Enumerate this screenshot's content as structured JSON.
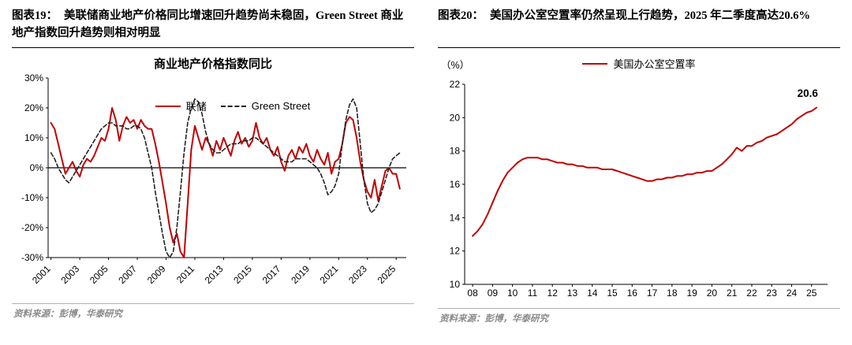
{
  "panels": [
    {
      "label": "图表19：",
      "title": "美联储商业地产价格同比增速回升趋势尚未稳固，Green Street 商业地产指数回升趋势则相对明显",
      "source": "资料来源：彭博，华泰研究"
    },
    {
      "label": "图表20：",
      "title": "美国办公室空置率仍然呈现上行趋势，2025 年二季度高达20.6%",
      "source": "资料来源：彭博，华泰研究"
    }
  ],
  "colors": {
    "accent_red": "#C00000",
    "dash_black": "#222222",
    "axis": "#000000"
  },
  "chart_data": [
    {
      "type": "line",
      "title": "商业地产价格指数同比",
      "xlabel": "",
      "ylabel": "",
      "x_start": 2001.0,
      "x_step": 0.25,
      "xlim": [
        2000.8,
        2025.7
      ],
      "ylim": [
        -30,
        30
      ],
      "yticks": [
        30,
        20,
        10,
        0,
        -10,
        -20,
        -30
      ],
      "y_suffix": "%",
      "xticks": {
        "values": [
          2001,
          2003,
          2005,
          2007,
          2009,
          2011,
          2013,
          2015,
          2017,
          2019,
          2021,
          2023,
          2025
        ],
        "labels": [
          "2001",
          "2003",
          "2005",
          "2007",
          "2009",
          "2011",
          "2013",
          "2015",
          "2017",
          "2019",
          "2021",
          "2023",
          "2025"
        ]
      },
      "rotate_x_labels": true,
      "zero_line": true,
      "grid": false,
      "legend_position": "inside-top",
      "series": [
        {
          "name": "联储",
          "color": "#C00000",
          "dash": "",
          "width": 2,
          "values": [
            15,
            13,
            8,
            3,
            -2,
            0,
            2,
            -1,
            -3,
            1,
            3,
            2,
            4,
            7,
            10,
            9,
            13,
            20,
            16,
            9,
            14,
            17,
            15,
            16,
            13,
            16,
            14,
            13,
            13,
            8,
            2,
            -5,
            -12,
            -20,
            -25,
            -22,
            -28,
            -30,
            -12,
            6,
            14,
            10,
            6,
            10,
            8,
            4,
            9,
            6,
            10,
            7,
            4,
            9,
            12,
            8,
            10,
            7,
            9,
            15,
            10,
            8,
            10,
            6,
            4,
            7,
            2,
            -1,
            4,
            6,
            3,
            7,
            5,
            8,
            4,
            2,
            6,
            3,
            1,
            5,
            -2,
            2,
            3,
            8,
            15,
            17,
            16,
            10,
            2,
            -4,
            -8,
            -10,
            -4,
            -11,
            -6,
            -1,
            0,
            -2,
            -2,
            -7
          ]
        },
        {
          "name": "Green Street",
          "color": "#222222",
          "dash": "5 3",
          "width": 1.6,
          "values": [
            5,
            3,
            0,
            -2,
            -4,
            -5,
            -3,
            -1,
            1,
            3,
            5,
            7,
            9,
            11,
            13,
            14,
            15,
            15,
            14,
            14,
            14,
            13,
            13,
            14,
            14,
            13,
            10,
            5,
            0,
            -8,
            -15,
            -22,
            -28,
            -30,
            -28,
            -20,
            -8,
            5,
            15,
            20,
            23,
            22,
            18,
            12,
            8,
            6,
            5,
            5,
            6,
            7,
            8,
            8,
            8,
            9,
            9,
            9,
            10,
            10,
            9,
            8,
            7,
            6,
            5,
            4,
            3,
            2,
            2,
            2,
            3,
            3,
            3,
            3,
            2,
            1,
            0,
            -2,
            -5,
            -9,
            -8,
            -6,
            -2,
            8,
            16,
            21,
            23,
            20,
            8,
            -4,
            -12,
            -15,
            -14,
            -12,
            -8,
            -4,
            0,
            3,
            4,
            5
          ]
        }
      ],
      "annotations": []
    },
    {
      "type": "line",
      "title": "",
      "xlabel": "",
      "ylabel": "（%）",
      "x_start": 2008.0,
      "x_step": 0.25,
      "xlim": [
        2007.6,
        2025.8
      ],
      "ylim": [
        10,
        22
      ],
      "yticks": [
        22,
        20,
        18,
        16,
        14,
        12,
        10
      ],
      "y_suffix": "",
      "xticks": {
        "values": [
          2008,
          2009,
          2010,
          2011,
          2012,
          2013,
          2014,
          2015,
          2016,
          2017,
          2018,
          2019,
          2020,
          2021,
          2022,
          2023,
          2024,
          2025
        ],
        "labels": [
          "08",
          "09",
          "10",
          "11",
          "12",
          "13",
          "14",
          "15",
          "16",
          "17",
          "18",
          "19",
          "20",
          "21",
          "22",
          "23",
          "24",
          "25"
        ]
      },
      "rotate_x_labels": false,
      "zero_line": false,
      "grid": false,
      "legend_position": "top-center",
      "series": [
        {
          "name": "美国办公室空置率",
          "color": "#C00000",
          "dash": "",
          "width": 2,
          "values": [
            12.9,
            13.2,
            13.6,
            14.2,
            14.9,
            15.6,
            16.2,
            16.7,
            17.0,
            17.3,
            17.5,
            17.6,
            17.6,
            17.6,
            17.5,
            17.5,
            17.4,
            17.3,
            17.3,
            17.2,
            17.2,
            17.1,
            17.1,
            17.0,
            17.0,
            17.0,
            16.9,
            16.9,
            16.9,
            16.8,
            16.7,
            16.6,
            16.5,
            16.4,
            16.3,
            16.2,
            16.2,
            16.3,
            16.3,
            16.4,
            16.4,
            16.5,
            16.5,
            16.6,
            16.6,
            16.7,
            16.7,
            16.8,
            16.8,
            17.0,
            17.2,
            17.5,
            17.8,
            18.2,
            18.0,
            18.3,
            18.3,
            18.5,
            18.6,
            18.8,
            18.9,
            19.0,
            19.2,
            19.4,
            19.6,
            19.9,
            20.1,
            20.3,
            20.4,
            20.6
          ]
        }
      ],
      "annotations": [
        {
          "x": 2024.8,
          "y": 21.25,
          "text": "20.6"
        }
      ]
    }
  ]
}
